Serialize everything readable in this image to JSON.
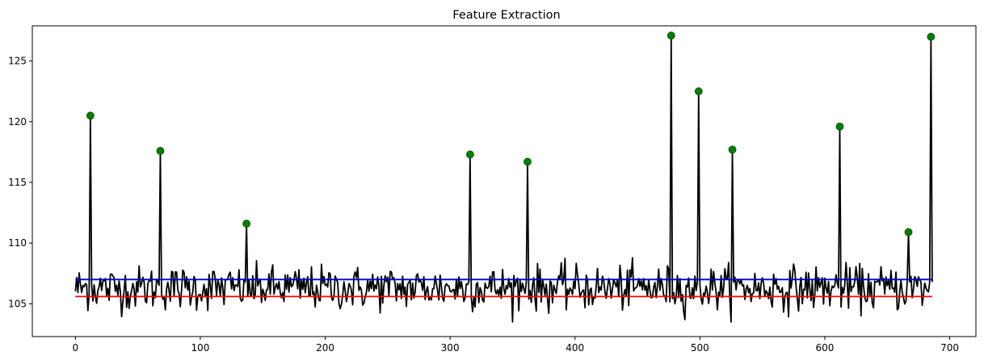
{
  "chart_data": {
    "type": "line",
    "title": "Feature Extraction",
    "xlabel": "",
    "ylabel": "",
    "xlim": [
      -34.5,
      721
    ],
    "ylim": [
      102.3,
      127.9
    ],
    "xticks": [
      0,
      100,
      200,
      300,
      400,
      500,
      600,
      700
    ],
    "yticks": [
      105,
      110,
      115,
      120,
      125
    ],
    "grid": false,
    "legend": "none",
    "colors": {
      "signal": "#000000",
      "upper_threshold": "#0000cc",
      "lower_threshold": "#ff0000",
      "peaks": "#008000"
    },
    "signal": {
      "n": 687,
      "baseline": 106.3,
      "noise": 0.9,
      "spikes": [
        {
          "x": 12,
          "y": 120.5
        },
        {
          "x": 68,
          "y": 117.6
        },
        {
          "x": 137,
          "y": 111.6
        },
        {
          "x": 316,
          "y": 117.3
        },
        {
          "x": 362,
          "y": 116.7
        },
        {
          "x": 477,
          "y": 127.1
        },
        {
          "x": 499,
          "y": 122.5
        },
        {
          "x": 526,
          "y": 117.7
        },
        {
          "x": 612,
          "y": 119.6
        },
        {
          "x": 667,
          "y": 110.9
        },
        {
          "x": 685,
          "y": 127.0
        }
      ]
    },
    "thresholds": [
      {
        "x": [
          0,
          686
        ],
        "y": 107.0,
        "color": "#0000cc"
      },
      {
        "x": [
          0,
          686
        ],
        "y": 105.6,
        "color": "#ff0000"
      }
    ],
    "peaks": {
      "x": [
        12,
        68,
        137,
        316,
        362,
        477,
        499,
        526,
        612,
        667,
        685
      ],
      "y": [
        120.5,
        117.6,
        111.6,
        117.3,
        116.7,
        127.1,
        122.5,
        117.7,
        119.6,
        110.9,
        127.0
      ]
    }
  }
}
